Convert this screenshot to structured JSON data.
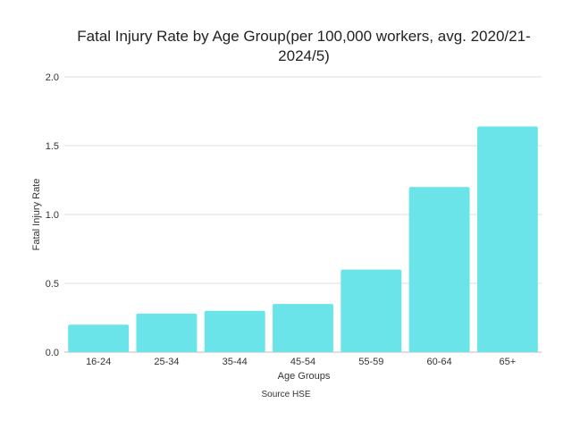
{
  "chart_data": {
    "type": "bar",
    "title": "Fatal Injury Rate by Age Group(per 100,000 workers, avg. 2020/21-2024/5)",
    "xlabel": "Age Groups",
    "ylabel": "Fatal Injury Rate",
    "categories": [
      "16-24",
      "25-34",
      "35-44",
      "45-54",
      "55-59",
      "60-64",
      "65+"
    ],
    "values": [
      0.2,
      0.28,
      0.3,
      0.35,
      0.6,
      1.2,
      1.64
    ],
    "ylim": [
      0,
      2.0
    ],
    "yticks": [
      "0.0",
      "0.5",
      "1.0",
      "1.5",
      "2.0"
    ],
    "grid": true,
    "bar_color": "#6ae4e8",
    "source": "Source HSE"
  }
}
